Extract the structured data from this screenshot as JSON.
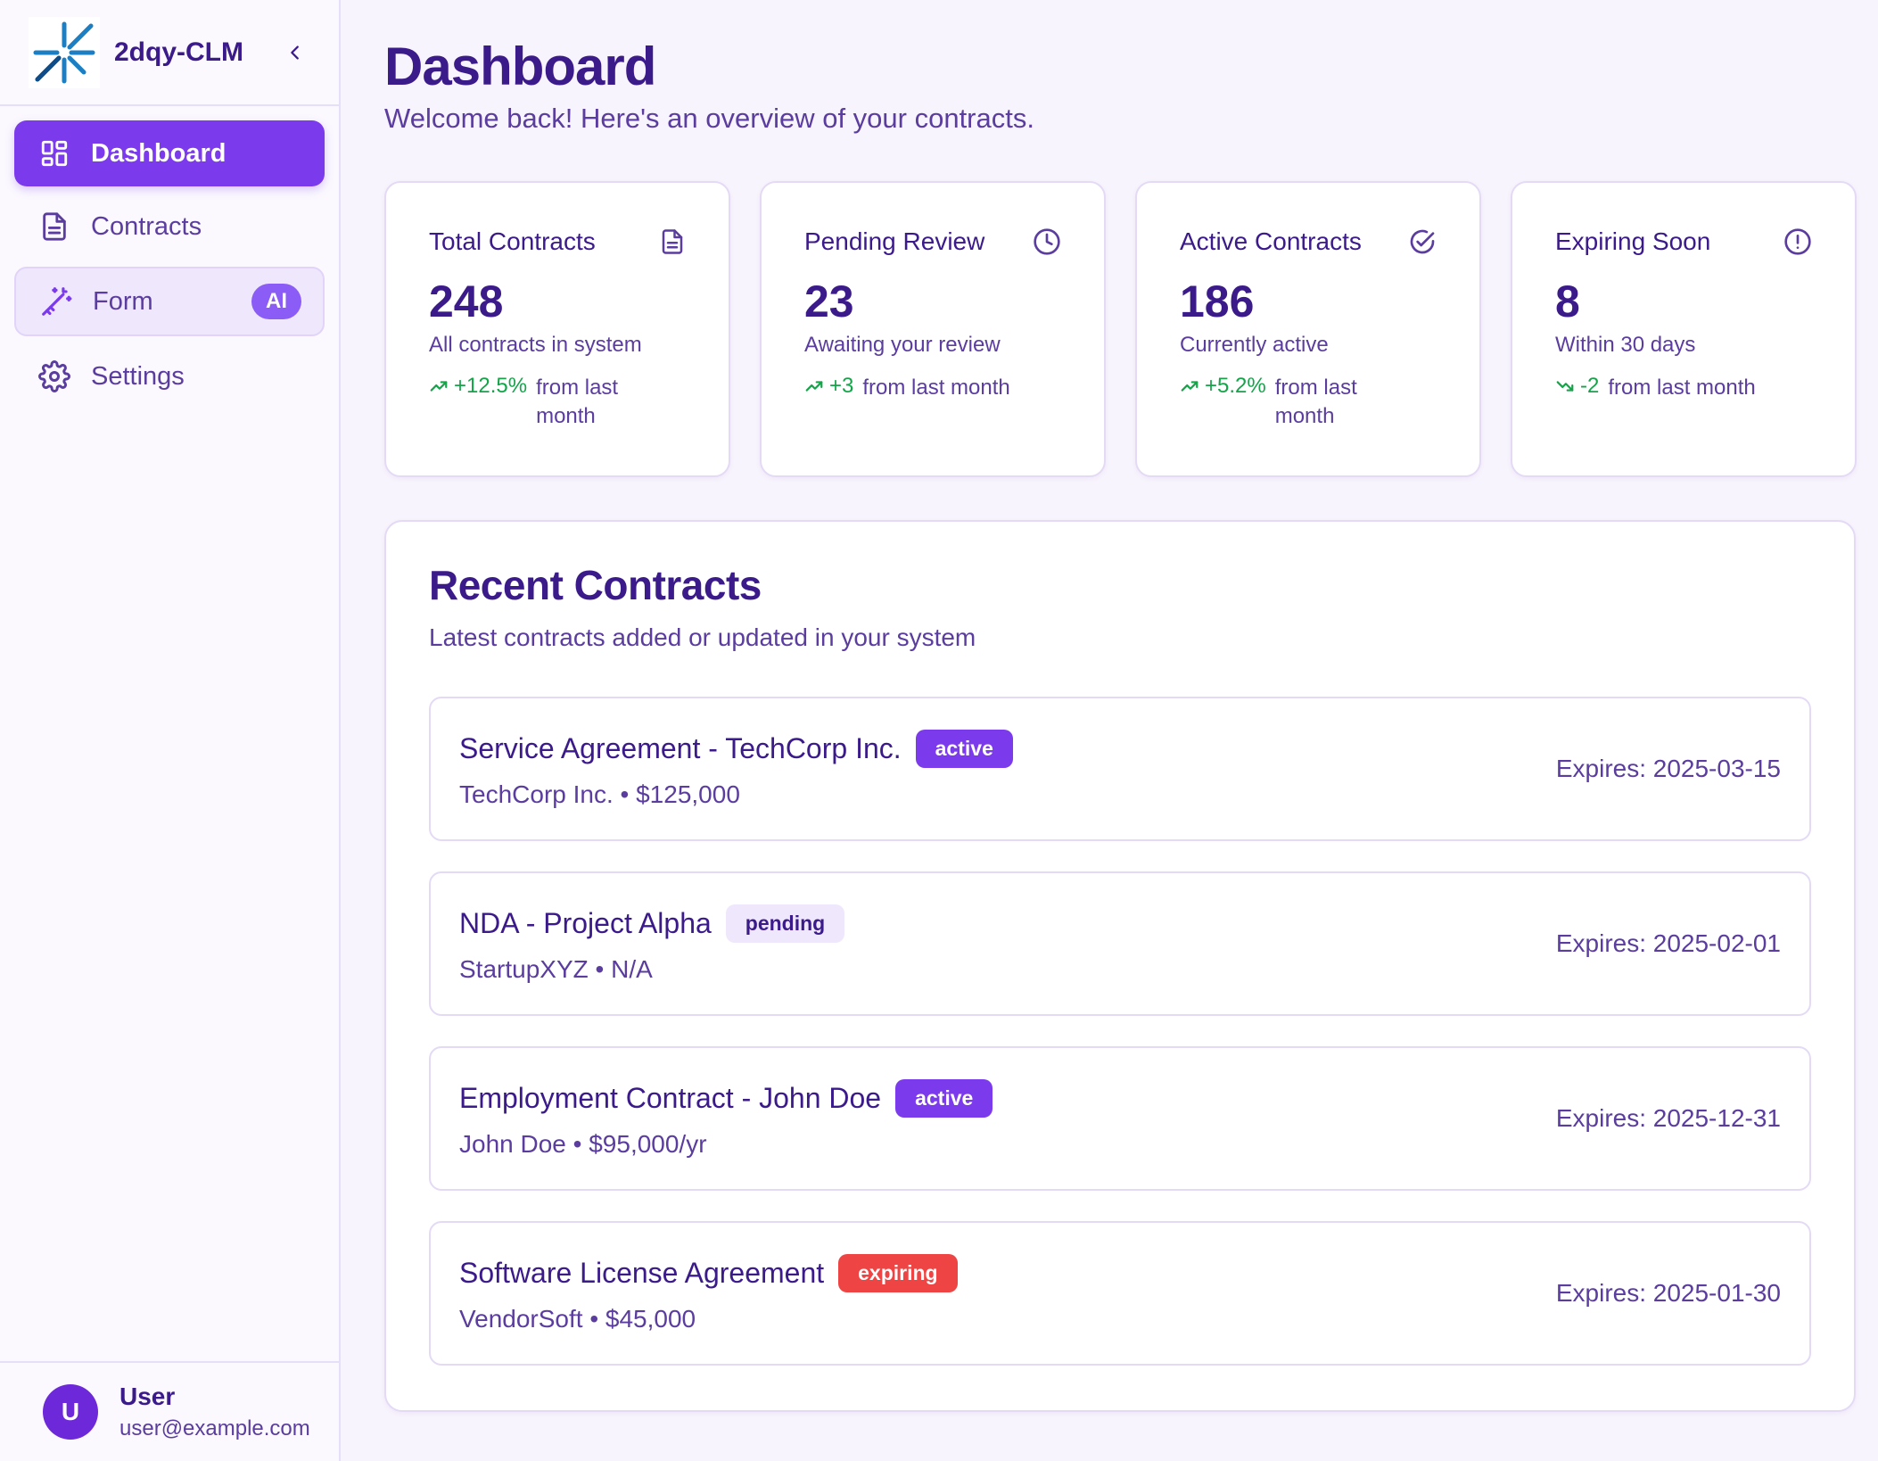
{
  "brand": {
    "name": "2dqy-CLM"
  },
  "nav": [
    {
      "label": "Dashboard"
    },
    {
      "label": "Contracts"
    },
    {
      "label": "Form",
      "badge": "AI"
    },
    {
      "label": "Settings"
    }
  ],
  "user": {
    "initial": "U",
    "name": "User",
    "email": "user@example.com"
  },
  "header": {
    "title": "Dashboard",
    "subtitle": "Welcome back! Here's an overview of your contracts."
  },
  "stats": [
    {
      "label": "Total Contracts",
      "value": "248",
      "desc": "All contracts in system",
      "delta": "+12.5%",
      "from": "from last month",
      "trend": "up",
      "icon": "document-icon"
    },
    {
      "label": "Pending Review",
      "value": "23",
      "desc": "Awaiting your review",
      "delta": "+3",
      "from": "from last month",
      "trend": "up",
      "icon": "clock-icon"
    },
    {
      "label": "Active Contracts",
      "value": "186",
      "desc": "Currently active",
      "delta": "+5.2%",
      "from": "from last month",
      "trend": "up",
      "icon": "check-circle-icon"
    },
    {
      "label": "Expiring Soon",
      "value": "8",
      "desc": "Within 30 days",
      "delta": "-2",
      "from": "from last month",
      "trend": "down",
      "icon": "alert-circle-icon"
    }
  ],
  "recent": {
    "title": "Recent Contracts",
    "subtitle": "Latest contracts added or updated in your system",
    "items": [
      {
        "name": "Service Agreement - TechCorp Inc.",
        "status": "active",
        "meta": "TechCorp Inc. • $125,000",
        "expires": "Expires: 2025-03-15"
      },
      {
        "name": "NDA - Project Alpha",
        "status": "pending",
        "meta": "StartupXYZ • N/A",
        "expires": "Expires: 2025-02-01"
      },
      {
        "name": "Employment Contract - John Doe",
        "status": "active",
        "meta": "John Doe • $95,000/yr",
        "expires": "Expires: 2025-12-31"
      },
      {
        "name": "Software License Agreement",
        "status": "expiring",
        "meta": "VendorSoft • $45,000",
        "expires": "Expires: 2025-01-30"
      }
    ]
  },
  "colors": {
    "primary": "#7c3aed",
    "text": "#3b1a8a",
    "muted": "#5a3d9e",
    "positive": "#16a34a",
    "danger": "#ef4444",
    "background": "#f8f4fd"
  }
}
